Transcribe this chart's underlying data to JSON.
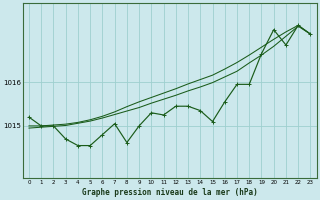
{
  "title": "Graphe pression niveau de la mer (hPa)",
  "bg_color": "#cce8ec",
  "grid_color": "#9ecfcf",
  "line_color": "#1a5c1a",
  "x_ticks": [
    0,
    1,
    2,
    3,
    4,
    5,
    6,
    7,
    8,
    9,
    10,
    11,
    12,
    13,
    14,
    15,
    16,
    17,
    18,
    19,
    20,
    21,
    22,
    23
  ],
  "y_ticks": [
    1015,
    1016
  ],
  "ylim": [
    1013.8,
    1017.8
  ],
  "xlim": [
    -0.5,
    23.5
  ],
  "main_data": [
    1015.2,
    1015.0,
    1015.0,
    1014.7,
    1014.55,
    1014.55,
    1014.8,
    1015.05,
    1014.62,
    1015.0,
    1015.3,
    1015.25,
    1015.45,
    1015.45,
    1015.35,
    1015.1,
    1015.55,
    1015.95,
    1015.95,
    1016.65,
    1017.2,
    1016.85,
    1017.3,
    1017.1
  ],
  "line2_data": [
    1014.95,
    1014.97,
    1014.99,
    1015.01,
    1015.06,
    1015.11,
    1015.18,
    1015.26,
    1015.34,
    1015.42,
    1015.52,
    1015.61,
    1015.7,
    1015.8,
    1015.89,
    1015.99,
    1016.12,
    1016.25,
    1016.44,
    1016.62,
    1016.82,
    1017.05,
    1017.28,
    1017.1
  ],
  "line3_data": [
    1015.0,
    1015.0,
    1015.02,
    1015.04,
    1015.08,
    1015.14,
    1015.22,
    1015.32,
    1015.44,
    1015.55,
    1015.65,
    1015.75,
    1015.85,
    1015.96,
    1016.06,
    1016.16,
    1016.3,
    1016.45,
    1016.62,
    1016.8,
    1016.98,
    1017.15,
    1017.3,
    1017.1
  ]
}
